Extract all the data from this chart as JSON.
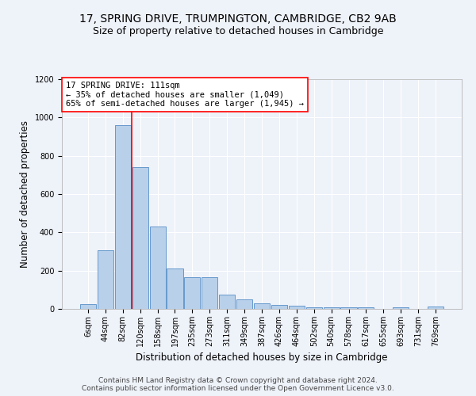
{
  "title1": "17, SPRING DRIVE, TRUMPINGTON, CAMBRIDGE, CB2 9AB",
  "title2": "Size of property relative to detached houses in Cambridge",
  "xlabel": "Distribution of detached houses by size in Cambridge",
  "ylabel": "Number of detached properties",
  "annotation_line1": "17 SPRING DRIVE: 111sqm",
  "annotation_line2": "← 35% of detached houses are smaller (1,049)",
  "annotation_line3": "65% of semi-detached houses are larger (1,945) →",
  "footer1": "Contains HM Land Registry data © Crown copyright and database right 2024.",
  "footer2": "Contains public sector information licensed under the Open Government Licence v3.0.",
  "bar_labels": [
    "6sqm",
    "44sqm",
    "82sqm",
    "120sqm",
    "158sqm",
    "197sqm",
    "235sqm",
    "273sqm",
    "311sqm",
    "349sqm",
    "387sqm",
    "426sqm",
    "464sqm",
    "502sqm",
    "540sqm",
    "578sqm",
    "617sqm",
    "655sqm",
    "693sqm",
    "731sqm",
    "769sqm"
  ],
  "bar_values": [
    25,
    305,
    960,
    740,
    430,
    210,
    165,
    165,
    75,
    50,
    30,
    20,
    15,
    10,
    10,
    10,
    10,
    0,
    10,
    0,
    12
  ],
  "bar_color": "#b8d0ea",
  "bar_edge_color": "#6699cc",
  "red_line_index": 2.5,
  "ylim": [
    0,
    1200
  ],
  "yticks": [
    0,
    200,
    400,
    600,
    800,
    1000,
    1200
  ],
  "background_color": "#eef2f9",
  "grid_color": "#ffffff",
  "title1_fontsize": 10,
  "title2_fontsize": 9,
  "xlabel_fontsize": 8.5,
  "ylabel_fontsize": 8.5,
  "annot_fontsize": 7.5,
  "footer_fontsize": 6.5,
  "tick_fontsize": 7
}
